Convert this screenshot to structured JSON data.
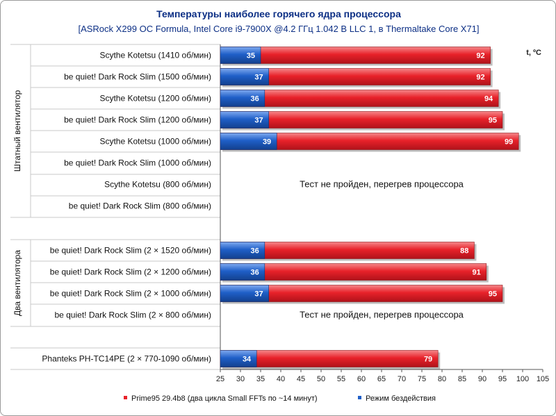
{
  "chart_data": {
    "type": "bar",
    "title": "Температуры наиболее горячего ядра процессора",
    "subtitle": "[ASRock X299 OC Formula, Intel Core i9-7900X @4.2 ГГц 1.042 В LLC 1, в Thermaltake Core X71]",
    "axis_unit_label": "t, ºC",
    "xlim": [
      25,
      105
    ],
    "ticks": [
      25,
      30,
      35,
      40,
      45,
      50,
      55,
      60,
      65,
      70,
      75,
      80,
      85,
      90,
      95,
      100,
      105
    ],
    "groups": [
      {
        "name": "Штатный вентилятор",
        "categories": [
          "Scythe Kotetsu (1410 об/мин)",
          "be quiet! Dark Rock Slim (1500 об/мин)",
          "Scythe Kotetsu (1200 об/мин)",
          "be quiet! Dark Rock Slim (1200 об/мин)",
          "Scythe Kotetsu (1000 об/мин)",
          "be quiet! Dark Rock Slim (1000 об/мин)",
          "Scythe Kotetsu (800 об/мин)",
          "be quiet! Dark Rock Slim (800 об/мин)"
        ]
      },
      {
        "name": "Два вентилятора",
        "categories": [
          "be quiet! Dark Rock Slim (2 × 1520 об/мин)",
          "be quiet! Dark Rock Slim (2 × 1200 об/мин)",
          "be quiet! Dark Rock Slim (2 × 1000 об/мин)",
          "be quiet! Dark Rock Slim (2 × 800 об/мин)"
        ]
      },
      {
        "name": "",
        "categories": [
          "Phanteks PH-TC14PE (2 × 770-1090 об/мин)"
        ]
      }
    ],
    "series": [
      {
        "name": "Prime95 29.4b8 (два цикла Small FFTs по ~14 минут)",
        "color": "#e8222a",
        "values": [
          92,
          92,
          94,
          95,
          99,
          null,
          null,
          null,
          88,
          91,
          95,
          null,
          79
        ]
      },
      {
        "name": "Режим бездействия",
        "color": "#1f5fc8",
        "values": [
          35,
          37,
          36,
          37,
          39,
          null,
          null,
          null,
          36,
          36,
          37,
          null,
          34
        ]
      }
    ],
    "notes": [
      {
        "text": "Тест не пройден, перегрев процессора",
        "rows": [
          5,
          6,
          7
        ]
      },
      {
        "text": "Тест не пройден, перегрев процессора",
        "rows": [
          11
        ]
      }
    ],
    "legend_position": "bottom",
    "grid": false
  }
}
